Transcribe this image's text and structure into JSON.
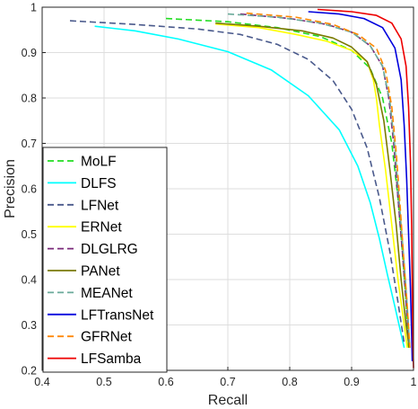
{
  "chart_data": {
    "type": "line",
    "title": "",
    "xlabel": "Recall",
    "ylabel": "Precision",
    "xlim": [
      0.4,
      1.0
    ],
    "ylim": [
      0.2,
      1.0
    ],
    "xticks": [
      "0.4",
      "0.5",
      "0.6",
      "0.7",
      "0.8",
      "0.9",
      "1"
    ],
    "yticks": [
      "0.2",
      "0.3",
      "0.4",
      "0.5",
      "0.6",
      "0.7",
      "0.8",
      "0.9",
      "1"
    ],
    "grid": true,
    "legend_position": "bottom-left",
    "series": [
      {
        "name": "MoLF",
        "color": "#22dd22",
        "dash": "dashed",
        "points": [
          [
            0.6,
            0.975
          ],
          [
            0.7,
            0.968
          ],
          [
            0.78,
            0.955
          ],
          [
            0.85,
            0.935
          ],
          [
            0.9,
            0.905
          ],
          [
            0.93,
            0.865
          ],
          [
            0.95,
            0.8
          ],
          [
            0.965,
            0.7
          ],
          [
            0.975,
            0.58
          ],
          [
            0.982,
            0.46
          ],
          [
            0.988,
            0.35
          ],
          [
            0.992,
            0.25
          ]
        ]
      },
      {
        "name": "DLFS",
        "color": "#00ffff",
        "dash": "solid",
        "points": [
          [
            0.485,
            0.958
          ],
          [
            0.55,
            0.948
          ],
          [
            0.62,
            0.93
          ],
          [
            0.7,
            0.902
          ],
          [
            0.77,
            0.862
          ],
          [
            0.83,
            0.805
          ],
          [
            0.88,
            0.73
          ],
          [
            0.91,
            0.65
          ],
          [
            0.93,
            0.57
          ],
          [
            0.945,
            0.49
          ],
          [
            0.958,
            0.41
          ],
          [
            0.97,
            0.34
          ],
          [
            0.985,
            0.25
          ]
        ]
      },
      {
        "name": "LFNet",
        "color": "#4a5a8c",
        "dash": "dashed",
        "points": [
          [
            0.445,
            0.97
          ],
          [
            0.55,
            0.962
          ],
          [
            0.65,
            0.952
          ],
          [
            0.72,
            0.94
          ],
          [
            0.78,
            0.918
          ],
          [
            0.83,
            0.885
          ],
          [
            0.87,
            0.838
          ],
          [
            0.9,
            0.775
          ],
          [
            0.925,
            0.69
          ],
          [
            0.945,
            0.58
          ],
          [
            0.962,
            0.46
          ],
          [
            0.975,
            0.35
          ],
          [
            0.985,
            0.26
          ]
        ]
      },
      {
        "name": "ERNet",
        "color": "#ffff00",
        "dash": "solid",
        "points": [
          [
            0.68,
            0.963
          ],
          [
            0.75,
            0.955
          ],
          [
            0.81,
            0.94
          ],
          [
            0.86,
            0.925
          ],
          [
            0.9,
            0.905
          ],
          [
            0.925,
            0.88
          ],
          [
            0.935,
            0.84
          ],
          [
            0.94,
            0.8
          ],
          [
            0.945,
            0.74
          ],
          [
            0.955,
            0.64
          ],
          [
            0.965,
            0.52
          ],
          [
            0.975,
            0.4
          ],
          [
            0.985,
            0.3
          ],
          [
            0.99,
            0.25
          ]
        ]
      },
      {
        "name": "DLGLRG",
        "color": "#7a2a7a",
        "dash": "dashed",
        "points": [
          [
            0.72,
            0.985
          ],
          [
            0.8,
            0.975
          ],
          [
            0.86,
            0.962
          ],
          [
            0.9,
            0.945
          ],
          [
            0.93,
            0.915
          ],
          [
            0.95,
            0.87
          ],
          [
            0.96,
            0.8
          ],
          [
            0.968,
            0.7
          ],
          [
            0.975,
            0.58
          ],
          [
            0.982,
            0.46
          ],
          [
            0.988,
            0.35
          ],
          [
            0.993,
            0.25
          ]
        ]
      },
      {
        "name": "PANet",
        "color": "#7a7a00",
        "dash": "solid",
        "points": [
          [
            0.68,
            0.965
          ],
          [
            0.75,
            0.958
          ],
          [
            0.82,
            0.948
          ],
          [
            0.87,
            0.932
          ],
          [
            0.9,
            0.912
          ],
          [
            0.925,
            0.88
          ],
          [
            0.94,
            0.83
          ],
          [
            0.952,
            0.75
          ],
          [
            0.962,
            0.64
          ],
          [
            0.972,
            0.52
          ],
          [
            0.98,
            0.4
          ],
          [
            0.988,
            0.3
          ],
          [
            0.993,
            0.25
          ]
        ]
      },
      {
        "name": "MEANet",
        "color": "#6aaa9a",
        "dash": "dashed",
        "points": [
          [
            0.7,
            0.985
          ],
          [
            0.78,
            0.978
          ],
          [
            0.85,
            0.965
          ],
          [
            0.9,
            0.945
          ],
          [
            0.93,
            0.915
          ],
          [
            0.95,
            0.87
          ],
          [
            0.962,
            0.79
          ],
          [
            0.97,
            0.69
          ],
          [
            0.977,
            0.57
          ],
          [
            0.984,
            0.45
          ],
          [
            0.99,
            0.34
          ],
          [
            0.994,
            0.25
          ]
        ]
      },
      {
        "name": "LFTransNet",
        "color": "#0000dd",
        "dash": "solid",
        "points": [
          [
            0.83,
            0.99
          ],
          [
            0.88,
            0.985
          ],
          [
            0.92,
            0.975
          ],
          [
            0.95,
            0.955
          ],
          [
            0.97,
            0.91
          ],
          [
            0.98,
            0.84
          ],
          [
            0.985,
            0.74
          ],
          [
            0.989,
            0.62
          ],
          [
            0.992,
            0.5
          ],
          [
            0.995,
            0.38
          ],
          [
            0.997,
            0.28
          ],
          [
            0.998,
            0.22
          ]
        ]
      },
      {
        "name": "GFRNet",
        "color": "#ff8800",
        "dash": "dashed",
        "points": [
          [
            0.73,
            0.987
          ],
          [
            0.81,
            0.978
          ],
          [
            0.87,
            0.962
          ],
          [
            0.91,
            0.94
          ],
          [
            0.94,
            0.91
          ],
          [
            0.955,
            0.86
          ],
          [
            0.965,
            0.78
          ],
          [
            0.972,
            0.68
          ],
          [
            0.978,
            0.57
          ],
          [
            0.984,
            0.45
          ],
          [
            0.99,
            0.34
          ],
          [
            0.994,
            0.25
          ]
        ]
      },
      {
        "name": "LFSamba",
        "color": "#ee0000",
        "dash": "solid",
        "points": [
          [
            0.845,
            0.995
          ],
          [
            0.9,
            0.99
          ],
          [
            0.94,
            0.982
          ],
          [
            0.965,
            0.965
          ],
          [
            0.98,
            0.93
          ],
          [
            0.988,
            0.87
          ],
          [
            0.992,
            0.78
          ],
          [
            0.995,
            0.66
          ],
          [
            0.997,
            0.52
          ],
          [
            0.998,
            0.38
          ],
          [
            0.999,
            0.26
          ],
          [
            1.0,
            0.205
          ]
        ]
      }
    ]
  }
}
